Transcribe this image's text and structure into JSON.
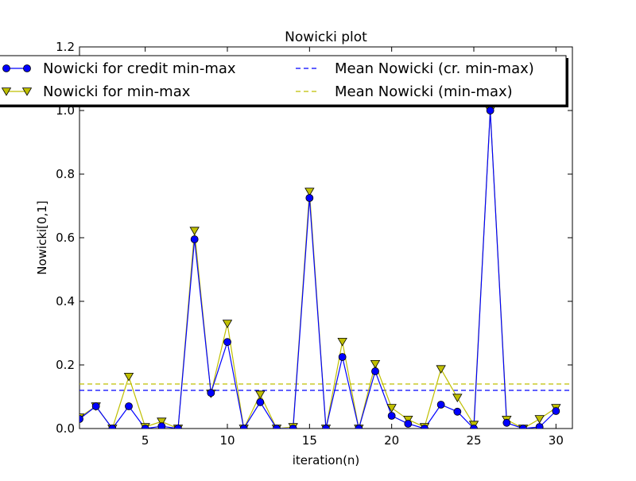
{
  "chart_data": {
    "type": "line",
    "title": "Nowicki plot",
    "xlabel": "iteration(n)",
    "ylabel": "Nowicki[0,1]",
    "xlim": [
      1,
      31
    ],
    "ylim": [
      0,
      1.2
    ],
    "x_ticks": [
      5,
      10,
      15,
      20,
      25,
      30
    ],
    "y_ticks": [
      0.0,
      0.2,
      0.4,
      0.6,
      0.8,
      1.0,
      1.2
    ],
    "x_tick_labels": [
      "5",
      "10",
      "15",
      "20",
      "25",
      "30"
    ],
    "y_tick_labels": [
      "0.0",
      "0.2",
      "0.4",
      "0.6",
      "0.8",
      "1.0",
      "1.2"
    ],
    "grid": false,
    "legend_position": "top, spanning full width, two columns",
    "x": [
      1,
      2,
      3,
      4,
      5,
      6,
      7,
      8,
      9,
      10,
      11,
      12,
      13,
      14,
      15,
      16,
      17,
      18,
      19,
      20,
      21,
      22,
      23,
      24,
      25,
      26,
      27,
      28,
      29,
      30
    ],
    "series": [
      {
        "name": "Nowicki for credit min-max",
        "color": "#0000ff",
        "marker": "circle",
        "values": [
          0.03,
          0.07,
          0.0,
          0.07,
          0.0,
          0.007,
          0.0,
          0.595,
          0.112,
          0.272,
          0.0,
          0.083,
          0.0,
          0.0,
          0.725,
          0.0,
          0.225,
          0.0,
          0.18,
          0.04,
          0.015,
          0.0,
          0.075,
          0.053,
          0.0,
          1.0,
          0.018,
          0.0,
          0.005,
          0.055
        ]
      },
      {
        "name": "Nowicki for min-max",
        "color": "#bfbf00",
        "marker": "triangle-down",
        "values": [
          0.035,
          0.07,
          0.0,
          0.163,
          0.005,
          0.022,
          0.0,
          0.622,
          0.11,
          0.33,
          0.0,
          0.107,
          0.0,
          0.005,
          0.745,
          0.0,
          0.273,
          0.0,
          0.203,
          0.065,
          0.028,
          0.005,
          0.187,
          0.097,
          0.012,
          1.0,
          0.028,
          0.0,
          0.03,
          0.065
        ]
      }
    ],
    "mean_lines": [
      {
        "name": "Mean Nowicki (cr. min-max)",
        "color": "#0000ff",
        "value": 0.12
      },
      {
        "name": "Mean Nowicki (min-max)",
        "color": "#bfbf00",
        "value": 0.14
      }
    ]
  }
}
